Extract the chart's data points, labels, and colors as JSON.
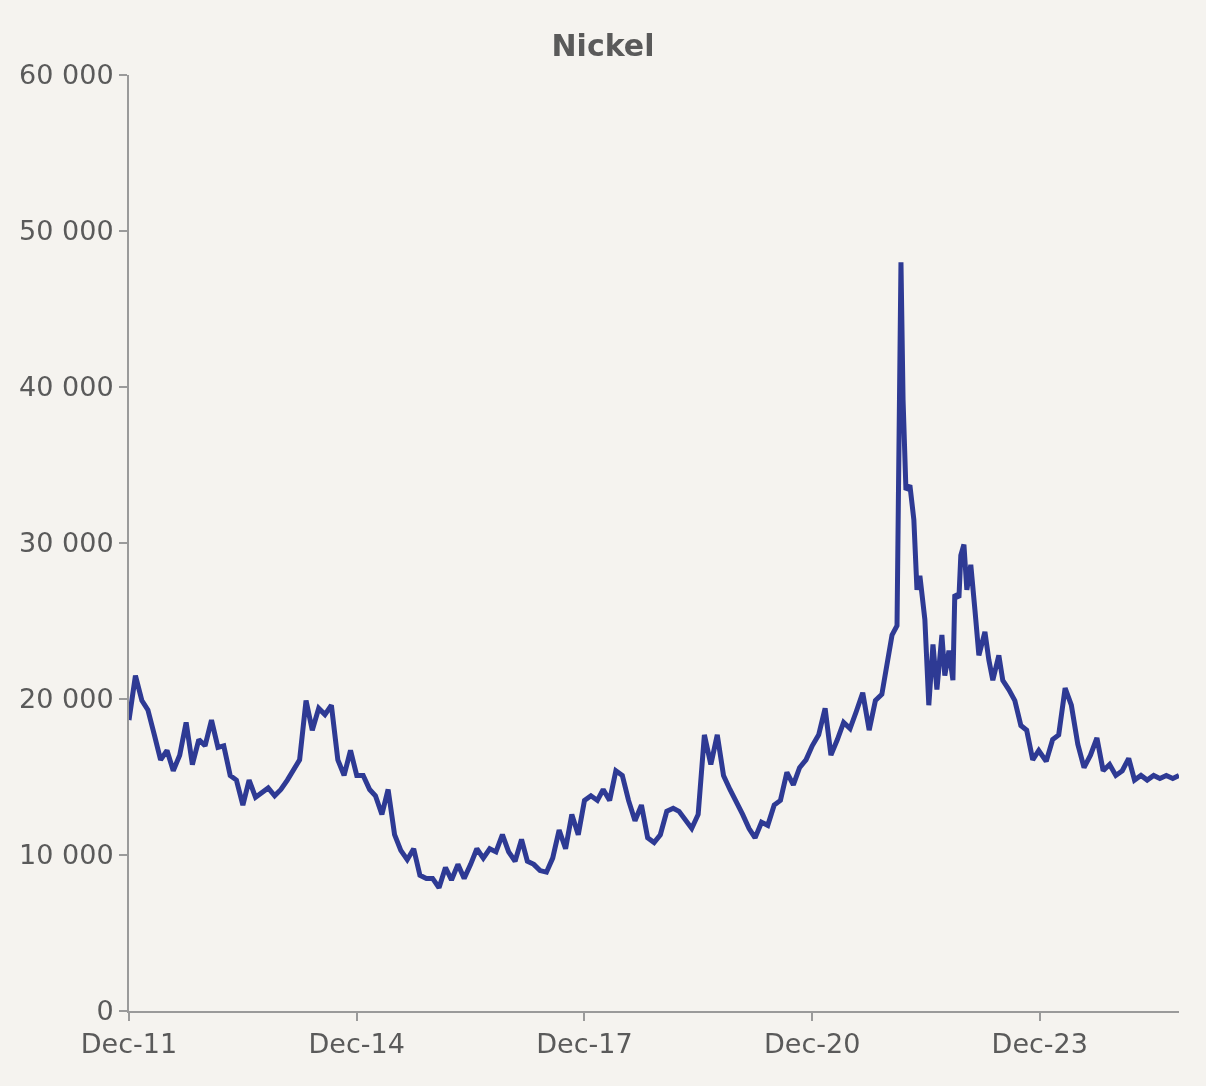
{
  "chart_data": {
    "type": "line",
    "title": "Nickel",
    "x": [
      "2011-12",
      "2012-01",
      "2012-02",
      "2012-03",
      "2012-04",
      "2012-05",
      "2012-06",
      "2012-07",
      "2012-08",
      "2012-09",
      "2012-10",
      "2012-11",
      "2012-12",
      "2013-01",
      "2013-02",
      "2013-03",
      "2013-04",
      "2013-05",
      "2013-06",
      "2013-07",
      "2013-08",
      "2013-10",
      "2013-11",
      "2013-12",
      "2014-01",
      "2014-03",
      "2014-04",
      "2014-05",
      "2014-06",
      "2014-07",
      "2014-08",
      "2014-09",
      "2014-10",
      "2014-11",
      "2014-12",
      "2015-01",
      "2015-02",
      "2015-03",
      "2015-04",
      "2015-05",
      "2015-06",
      "2015-07",
      "2015-08",
      "2015-09",
      "2015-10",
      "2015-11",
      "2015-12",
      "2016-01",
      "2016-02",
      "2016-03",
      "2016-04",
      "2016-05",
      "2016-06",
      "2016-07",
      "2016-08",
      "2016-09",
      "2016-10",
      "2016-11",
      "2016-12",
      "2017-01",
      "2017-02",
      "2017-03",
      "2017-04",
      "2017-05",
      "2017-06",
      "2017-07",
      "2017-08",
      "2017-09",
      "2017-10",
      "2017-11",
      "2017-12",
      "2018-01",
      "2018-02",
      "2018-03",
      "2018-04",
      "2018-05",
      "2018-06",
      "2018-07",
      "2018-08",
      "2018-09",
      "2018-10",
      "2018-11",
      "2018-12",
      "2019-01",
      "2019-02",
      "2019-03",
      "2019-05",
      "2019-06",
      "2019-07",
      "2019-08",
      "2019-09",
      "2019-10",
      "2019-11",
      "2020-01",
      "2020-02",
      "2020-03",
      "2020-04",
      "2020-05",
      "2020-06",
      "2020-07",
      "2020-08",
      "2020-09",
      "2020-10",
      "2020-11",
      "2020-12",
      "2021-01",
      "2021-02",
      "2021-03",
      "2021-04",
      "2021-05",
      "2021-06",
      "2021-07",
      "2021-08",
      "2021-09",
      "2021-10",
      "2021-11",
      "2021-12-20",
      "2022-01-13",
      "2022-02-01",
      "2022-02-11",
      "2022-02-25",
      "2022-03-16",
      "2022-04-04",
      "2022-04-19",
      "2022-05-03",
      "2022-05-27",
      "2022-06-15",
      "2022-07-05",
      "2022-07-24",
      "2022-08-17",
      "2022-08-31",
      "2022-09-20",
      "2022-10-09",
      "2022-10-18",
      "2022-11-07",
      "2022-11-16",
      "2022-12-01",
      "2022-12-15",
      "2023-01-03",
      "2023-01-23",
      "2023-02-11",
      "2023-03-12",
      "2023-03-31",
      "2023-04-19",
      "2023-05-18",
      "2023-06-06",
      "2023-07-05",
      "2023-08-03",
      "2023-09-01",
      "2023-09-29",
      "2023-10-28",
      "2023-11-26",
      "2024-01",
      "2024-02",
      "2024-03",
      "2024-04",
      "2024-05",
      "2024-06",
      "2024-07",
      "2024-08",
      "2024-09",
      "2024-10",
      "2024-11",
      "2024-12",
      "2025-01",
      "2025-02",
      "2025-03",
      "2025-04",
      "2025-05",
      "2025-06",
      "2025-07",
      "2025-08",
      "2025-09",
      "2025-10"
    ],
    "series": [
      {
        "color": "#2e3a94",
        "values": [
          18650,
          21500,
          19900,
          19300,
          17700,
          16100,
          16700,
          15400,
          16400,
          18500,
          15800,
          17400,
          17000,
          18650,
          16900,
          17000,
          15100,
          14800,
          13200,
          14800,
          13700,
          14300,
          13800,
          14200,
          14800,
          16100,
          19900,
          18000,
          19400,
          19000,
          19600,
          16100,
          15100,
          16700,
          15100,
          15100,
          14200,
          13800,
          12600,
          14200,
          11300,
          10300,
          9700,
          10400,
          8700,
          8500,
          8500,
          7900,
          9200,
          8400,
          9400,
          8500,
          9400,
          10400,
          9800,
          10400,
          10200,
          11300,
          10200,
          9600,
          11000,
          9600,
          9400,
          9000,
          8900,
          9800,
          11600,
          10400,
          12600,
          11300,
          13500,
          13800,
          13500,
          14200,
          13500,
          15400,
          15100,
          13500,
          12200,
          13200,
          11100,
          10800,
          11300,
          12800,
          13000,
          12800,
          11700,
          12600,
          17700,
          15800,
          17700,
          15100,
          14200,
          12600,
          11700,
          11100,
          12100,
          11900,
          13200,
          13500,
          15300,
          14500,
          15600,
          16100,
          17000,
          17700,
          19400,
          16400,
          17400,
          18500,
          18100,
          19200,
          20400,
          18000,
          19900,
          20300,
          24100,
          24700,
          48000,
          39200,
          33400,
          33700,
          31500,
          27000,
          27900,
          25100,
          19600,
          23500,
          20600,
          24100,
          21500,
          23100,
          21200,
          26700,
          26500,
          29200,
          29900,
          27000,
          28600,
          25700,
          22800,
          24300,
          22500,
          21200,
          22800,
          21200,
          20600,
          19900,
          18300,
          18000,
          16100,
          16700,
          16000,
          17400,
          17700,
          20700,
          19600,
          17100,
          15600,
          16400,
          17500,
          15400,
          15800,
          15100,
          15400,
          16200,
          14800,
          15100,
          14800,
          15100,
          14900,
          15100,
          14900,
          15100
        ]
      }
    ],
    "xlim": [
      "2011-12-01",
      "2025-10-01"
    ],
    "xticks": [
      {
        "value": "2011-12-01",
        "label": "Dec-11"
      },
      {
        "value": "2014-12-01",
        "label": "Dec-14"
      },
      {
        "value": "2017-12-01",
        "label": "Dec-17"
      },
      {
        "value": "2020-12-01",
        "label": "Dec-20"
      },
      {
        "value": "2023-12-01",
        "label": "Dec-23"
      }
    ],
    "ylim": [
      0,
      60000
    ],
    "yticks": [
      {
        "value": 0,
        "label": "0"
      },
      {
        "value": 10000,
        "label": "10 000"
      },
      {
        "value": 20000,
        "label": "20 000"
      },
      {
        "value": 30000,
        "label": "30 000"
      },
      {
        "value": 40000,
        "label": "40 000"
      },
      {
        "value": 50000,
        "label": "50 000"
      },
      {
        "value": 60000,
        "label": "60 000"
      }
    ],
    "grid": false,
    "legend": false,
    "marker": "none",
    "line_style": "solid"
  }
}
